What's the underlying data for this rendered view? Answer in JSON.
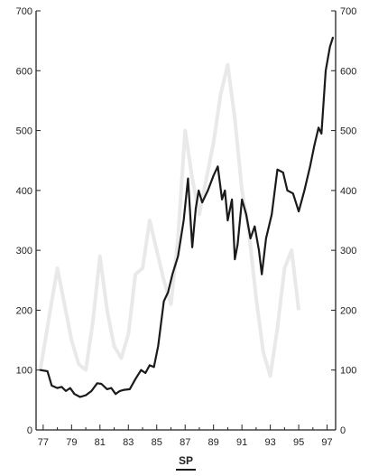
{
  "chart_data": {
    "type": "line",
    "title": "",
    "xlabel": "",
    "ylabel": "",
    "legend": {
      "label": "SP",
      "placement": "bottom-center"
    },
    "colors": {
      "series": "#1a1a1a",
      "background_series": "#e9e9e9"
    },
    "grid": false,
    "xlim": [
      1976.5,
      1997.6
    ],
    "ylim": [
      0,
      700
    ],
    "x_tick_labels": [
      "77",
      "79",
      "81",
      "83",
      "85",
      "87",
      "89",
      "91",
      "93",
      "95",
      "97"
    ],
    "x_tick_values": [
      1977,
      1979,
      1981,
      1983,
      1985,
      1987,
      1989,
      1991,
      1993,
      1995,
      1997
    ],
    "y_ticks": [
      0,
      100,
      200,
      300,
      400,
      500,
      600,
      700
    ],
    "series": [
      {
        "name": "SP",
        "x": [
          1976.8,
          1977.3,
          1977.6,
          1978.0,
          1978.3,
          1978.6,
          1978.9,
          1979.2,
          1979.6,
          1980.0,
          1980.4,
          1980.8,
          1981.1,
          1981.5,
          1981.8,
          1982.1,
          1982.4,
          1982.7,
          1983.1,
          1983.5,
          1983.9,
          1984.2,
          1984.5,
          1984.8,
          1985.1,
          1985.5,
          1985.8,
          1986.1,
          1986.5,
          1986.9,
          1987.2,
          1987.5,
          1987.75,
          1987.95,
          1988.2,
          1988.6,
          1989.0,
          1989.3,
          1989.6,
          1989.8,
          1990.0,
          1990.3,
          1990.5,
          1990.7,
          1991.0,
          1991.3,
          1991.6,
          1991.9,
          1992.2,
          1992.4,
          1992.7,
          1993.1,
          1993.5,
          1993.9,
          1994.2,
          1994.6,
          1995.0,
          1995.4,
          1995.8,
          1996.1,
          1996.4,
          1996.6,
          1996.9,
          1997.2,
          1997.4
        ],
        "values": [
          100,
          98,
          74,
          70,
          72,
          65,
          70,
          60,
          55,
          58,
          65,
          78,
          77,
          68,
          70,
          60,
          65,
          67,
          68,
          85,
          100,
          95,
          108,
          105,
          140,
          215,
          230,
          260,
          290,
          350,
          420,
          305,
          370,
          400,
          380,
          400,
          425,
          440,
          385,
          400,
          350,
          385,
          285,
          310,
          385,
          360,
          320,
          340,
          300,
          260,
          320,
          360,
          435,
          430,
          400,
          395,
          365,
          400,
          440,
          475,
          505,
          495,
          600,
          640,
          655
        ]
      }
    ],
    "background_series": {
      "name": "",
      "x": [
        1976.8,
        1977.5,
        1978.0,
        1978.5,
        1979.0,
        1979.5,
        1980.0,
        1980.5,
        1981.0,
        1981.5,
        1982.0,
        1982.5,
        1983.0,
        1983.5,
        1984.0,
        1984.5,
        1985.0,
        1985.5,
        1986.0,
        1986.5,
        1987.0,
        1987.5,
        1988.0,
        1988.5,
        1989.0,
        1989.5,
        1990.0,
        1990.5,
        1991.0,
        1991.5,
        1992.0,
        1992.5,
        1993.0,
        1993.5,
        1994.0,
        1994.5,
        1995.0
      ],
      "values": [
        100,
        200,
        270,
        210,
        150,
        110,
        100,
        180,
        290,
        200,
        140,
        120,
        160,
        260,
        270,
        350,
        300,
        250,
        210,
        320,
        500,
        420,
        360,
        420,
        480,
        560,
        610,
        520,
        400,
        330,
        220,
        130,
        90,
        170,
        270,
        300,
        200
      ]
    }
  }
}
